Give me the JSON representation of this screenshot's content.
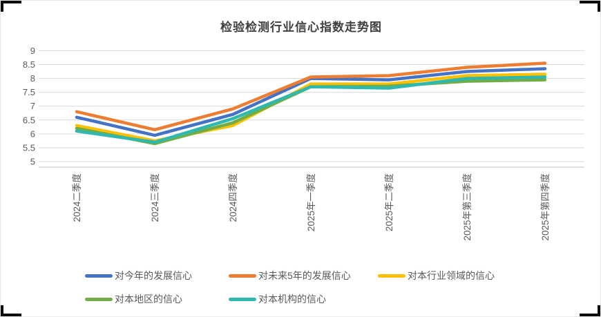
{
  "chart_data": {
    "type": "line",
    "title": "检验检测行业信心指数走势图",
    "categories": [
      "2024二季度",
      "2024三季度",
      "2024四季度",
      "2025年一季度",
      "2025年二季度",
      "2025年第三季度",
      "2025年第四季度"
    ],
    "series": [
      {
        "name": "对今年的发展信心",
        "color": "#4472C4",
        "values": [
          6.6,
          5.95,
          6.7,
          8.0,
          7.95,
          8.25,
          8.35
        ]
      },
      {
        "name": "对未来5年的发展信心",
        "color": "#ED7D31",
        "values": [
          6.8,
          6.15,
          6.9,
          8.05,
          8.1,
          8.4,
          8.55
        ]
      },
      {
        "name": "对本行业领域的信心",
        "color": "#FFC000",
        "values": [
          6.3,
          5.75,
          6.3,
          7.8,
          7.8,
          8.1,
          8.15
        ]
      },
      {
        "name": "对本地区的信心",
        "color": "#70AD47",
        "values": [
          6.2,
          5.65,
          6.4,
          7.7,
          7.72,
          7.9,
          7.95
        ]
      },
      {
        "name": "对本机构的信心",
        "color": "#2FB8B0",
        "values": [
          6.1,
          5.7,
          6.55,
          7.7,
          7.65,
          8.0,
          8.05
        ]
      }
    ],
    "y_axis": {
      "min": 5,
      "max": 9,
      "step": 0.5,
      "tick_labels": [
        "5",
        "5.5",
        "6",
        "6.5",
        "7",
        "7.5",
        "8",
        "8.5",
        "9"
      ]
    },
    "x_label_rotation_deg": -90,
    "grid": true,
    "legend_position": "bottom",
    "colors": {
      "gridline": "#D9D9D9",
      "axis_line": "#BFBFBF",
      "tick_label": "#595959",
      "title": "#404040",
      "legend_text": "#595959"
    }
  }
}
